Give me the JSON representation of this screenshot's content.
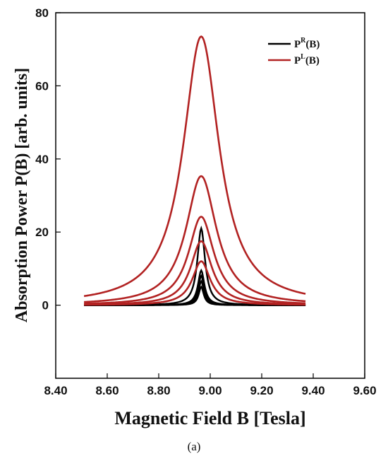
{
  "chart_data": {
    "type": "line",
    "title": "",
    "xlabel": "Magnetic Field B [Tesla]",
    "ylabel": "Absorption Power P(B) [arb. units]",
    "xlim": [
      8.4,
      9.6
    ],
    "ylim": [
      -20,
      80
    ],
    "x_ticks": [
      "8.40",
      "8.60",
      "8.80",
      "9.00",
      "9.20",
      "9.40",
      "9.60"
    ],
    "y_ticks": [
      "0",
      "20",
      "40",
      "60",
      "80"
    ],
    "grid": false,
    "legend_position": "top-right",
    "x_range": [
      8.51,
      9.37
    ],
    "resonance_center": 8.965,
    "colors": {
      "PR": "#000000",
      "PL": "#b22222"
    },
    "series": [
      {
        "name": "PR",
        "label_base": "P",
        "label_sup": "R",
        "label_arg": "(B)",
        "color": "#000000",
        "curves": [
          {
            "peak": 21.0,
            "width": 0.018
          },
          {
            "peak": 9.5,
            "width": 0.015
          },
          {
            "peak": 8.0,
            "width": 0.014
          },
          {
            "peak": 6.5,
            "width": 0.013
          },
          {
            "peak": 5.0,
            "width": 0.012
          }
        ]
      },
      {
        "name": "PL",
        "label_base": "P",
        "label_sup": "L",
        "label_arg": "(B)",
        "color": "#b22222",
        "curves": [
          {
            "peak": 73.5,
            "width": 0.085
          },
          {
            "peak": 35.3,
            "width": 0.072
          },
          {
            "peak": 24.2,
            "width": 0.06
          },
          {
            "peak": 17.5,
            "width": 0.05
          },
          {
            "peak": 12.0,
            "width": 0.042
          }
        ]
      }
    ]
  },
  "caption": "(a)"
}
